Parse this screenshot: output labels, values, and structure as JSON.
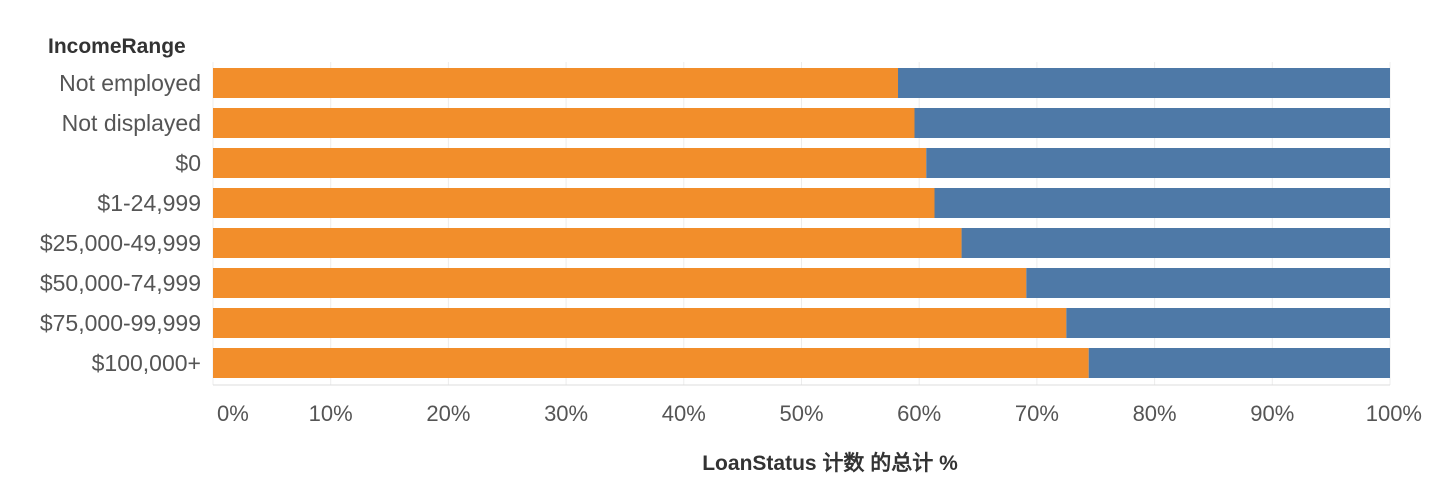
{
  "chart_data": {
    "type": "bar",
    "orientation": "horizontal",
    "stacked": true,
    "percent": true,
    "row_header": "IncomeRange",
    "xlabel": "LoanStatus 计数 的总计 %",
    "xlim": [
      0,
      100
    ],
    "x_ticks": [
      "0%",
      "10%",
      "20%",
      "30%",
      "40%",
      "50%",
      "60%",
      "70%",
      "80%",
      "90%",
      "100%"
    ],
    "grid": true,
    "categories": [
      "Not employed",
      "Not displayed",
      "$0",
      "$1-24,999",
      "$25,000-49,999",
      "$50,000-74,999",
      "$75,000-99,999",
      "$100,000+"
    ],
    "series": [
      {
        "color": "#F28E2B",
        "values": [
          58.2,
          59.6,
          60.6,
          61.3,
          63.6,
          69.1,
          72.5,
          74.4
        ]
      },
      {
        "color": "#4E79A7",
        "values": [
          41.8,
          40.4,
          39.4,
          38.7,
          36.4,
          30.9,
          27.5,
          25.6
        ]
      }
    ]
  }
}
